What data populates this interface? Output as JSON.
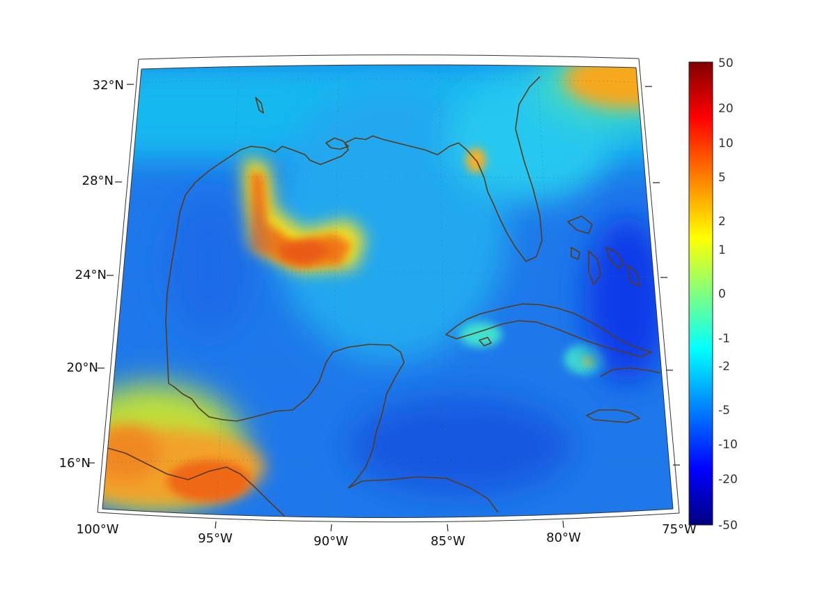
{
  "map": {
    "lon_labels": [
      "100°W",
      "95°W",
      "90°W",
      "85°W",
      "80°W",
      "75°W"
    ],
    "lat_labels": [
      "32°N",
      "28°N",
      "24°N",
      "20°N",
      "16°N"
    ],
    "extent": {
      "lon": [
        -100,
        -75
      ],
      "lat": [
        14,
        33
      ]
    },
    "projection": "conic"
  },
  "colorbar": {
    "tick_labels": [
      "50",
      "20",
      "10",
      "5",
      "2",
      "1",
      "0",
      "-1",
      "-2",
      "-5",
      "-10",
      "-20",
      "-50"
    ],
    "colormap": "jet",
    "colors": [
      "#800000",
      "#ff0000",
      "#ff8000",
      "#ffff00",
      "#80ff80",
      "#00ffff",
      "#0080ff",
      "#0000ff",
      "#000080"
    ]
  },
  "features": {
    "coastline_color": "#5b3a1a",
    "field_hotspots": [
      "north-central Gulf plume",
      "south-west Mexico / Guatemala",
      "north-east Atlantic corner"
    ]
  }
}
